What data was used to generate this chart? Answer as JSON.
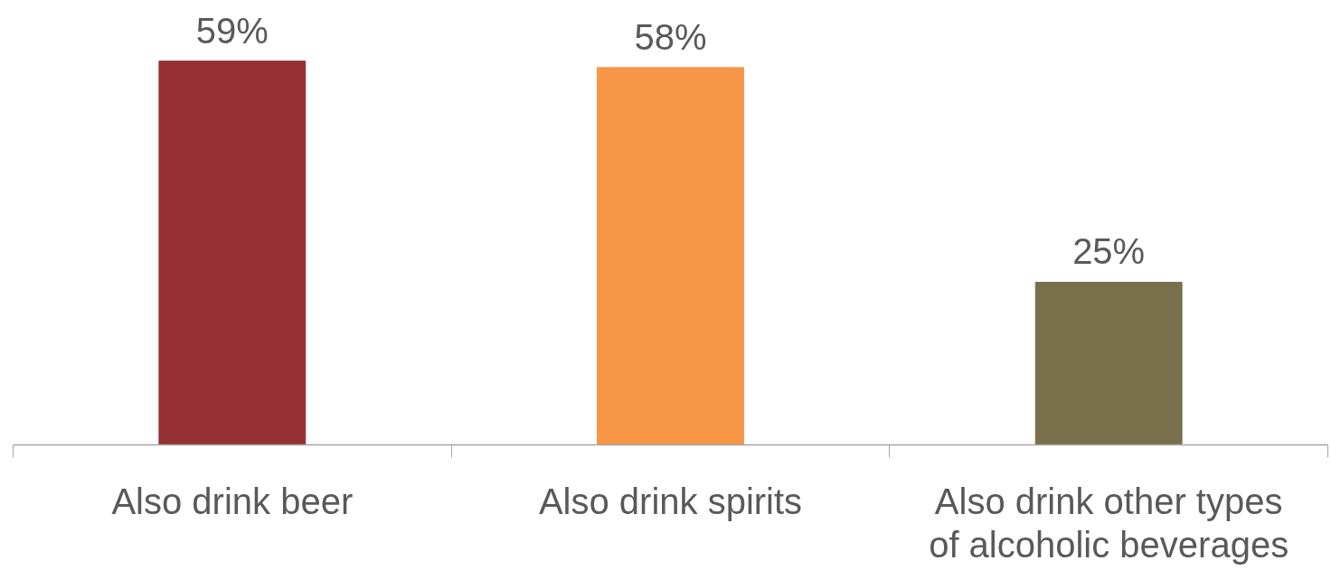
{
  "chart_data": {
    "type": "bar",
    "categories": [
      "Also drink beer",
      "Also drink spirits",
      "Also drink other types of alcoholic beverages"
    ],
    "values": [
      59,
      58,
      25
    ],
    "value_labels": [
      "59%",
      "58%",
      "25%"
    ],
    "colors": [
      "#953135",
      "#f79646",
      "#77704b"
    ]
  }
}
